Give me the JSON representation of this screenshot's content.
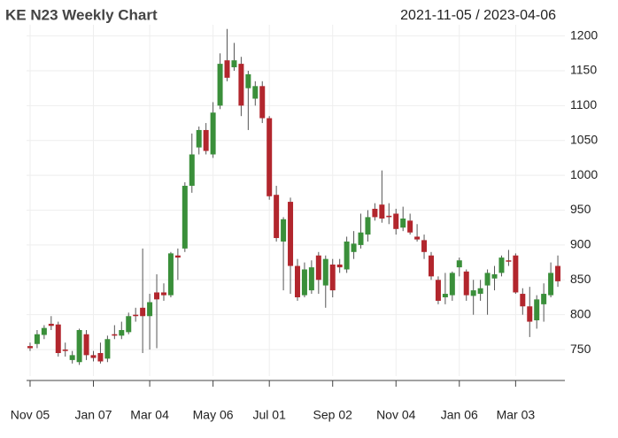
{
  "chart_data": {
    "type": "candlestick",
    "title": "KE N23 Weekly Chart",
    "subtitle": "2021-11-05 / 2023-04-06",
    "open": [
      755,
      758,
      771,
      787,
      786,
      750,
      735,
      732,
      772,
      742,
      745,
      737,
      772,
      770,
      775,
      800,
      810,
      798,
      832,
      832,
      828,
      885,
      895,
      985,
      1040,
      1065,
      1030,
      1100,
      1165,
      1155,
      1160,
      1125,
      1110,
      1128,
      1082,
      972,
      905,
      962,
      870,
      828,
      835,
      885,
      842,
      872,
      872,
      865,
      890,
      900,
      915,
      952,
      958,
      942,
      945,
      925,
      935,
      912,
      907,
      885,
      850,
      825,
      828,
      868,
      862,
      827,
      830,
      842,
      852,
      860,
      878,
      885,
      830,
      812,
      792,
      815,
      828,
      870
    ],
    "high": [
      760,
      778,
      785,
      798,
      790,
      760,
      748,
      780,
      778,
      748,
      760,
      770,
      785,
      790,
      803,
      810,
      895,
      830,
      858,
      845,
      890,
      895,
      990,
      1060,
      1070,
      1075,
      1105,
      1175,
      1210,
      1190,
      1170,
      1150,
      1135,
      1135,
      1085,
      985,
      940,
      968,
      880,
      875,
      878,
      890,
      885,
      880,
      880,
      912,
      920,
      945,
      950,
      960,
      1007,
      960,
      952,
      955,
      945,
      930,
      915,
      890,
      855,
      860,
      862,
      882,
      865,
      850,
      850,
      865,
      870,
      885,
      893,
      888,
      838,
      840,
      828,
      845,
      875,
      885
    ],
    "low": [
      748,
      752,
      765,
      778,
      740,
      740,
      730,
      728,
      735,
      733,
      730,
      732,
      765,
      765,
      772,
      790,
      745,
      750,
      752,
      820,
      825,
      850,
      890,
      975,
      1030,
      1030,
      1025,
      1095,
      1135,
      1150,
      1085,
      1065,
      1100,
      1075,
      965,
      905,
      835,
      830,
      820,
      825,
      830,
      830,
      810,
      825,
      860,
      860,
      880,
      895,
      905,
      935,
      932,
      930,
      915,
      920,
      915,
      905,
      880,
      850,
      815,
      815,
      820,
      855,
      820,
      800,
      820,
      800,
      835,
      855,
      870,
      830,
      800,
      768,
      780,
      790,
      825,
      840
    ],
    "close": [
      752,
      772,
      781,
      784,
      745,
      748,
      742,
      778,
      742,
      738,
      733,
      765,
      770,
      778,
      798,
      798,
      798,
      818,
      822,
      828,
      888,
      882,
      985,
      1030,
      1065,
      1035,
      1090,
      1160,
      1140,
      1165,
      1100,
      1145,
      1128,
      1082,
      970,
      910,
      937,
      870,
      825,
      865,
      868,
      850,
      880,
      835,
      868,
      905,
      902,
      918,
      940,
      940,
      938,
      940,
      923,
      938,
      918,
      908,
      890,
      855,
      820,
      830,
      860,
      878,
      828,
      835,
      838,
      860,
      858,
      882,
      877,
      832,
      812,
      790,
      822,
      830,
      860,
      848
    ],
    "up_color": "#3a8f3a",
    "down_color": "#b2262d",
    "xlim": [
      -0.5,
      76
    ],
    "xticks": [
      {
        "value": 0,
        "label": "Nov 05"
      },
      {
        "value": 9,
        "label": "Jan 07"
      },
      {
        "value": 17,
        "label": "Mar 04"
      },
      {
        "value": 26,
        "label": "May 06"
      },
      {
        "value": 34,
        "label": "Jul 01"
      },
      {
        "value": 43,
        "label": "Sep 02"
      },
      {
        "value": 52,
        "label": "Nov 04"
      },
      {
        "value": 61,
        "label": "Jan 06"
      },
      {
        "value": 69,
        "label": "Mar 03"
      }
    ],
    "ylim": [
      712,
      1216
    ],
    "yticks": [
      750,
      800,
      850,
      900,
      950,
      1000,
      1050,
      1100,
      1150,
      1200
    ],
    "grid": true
  }
}
